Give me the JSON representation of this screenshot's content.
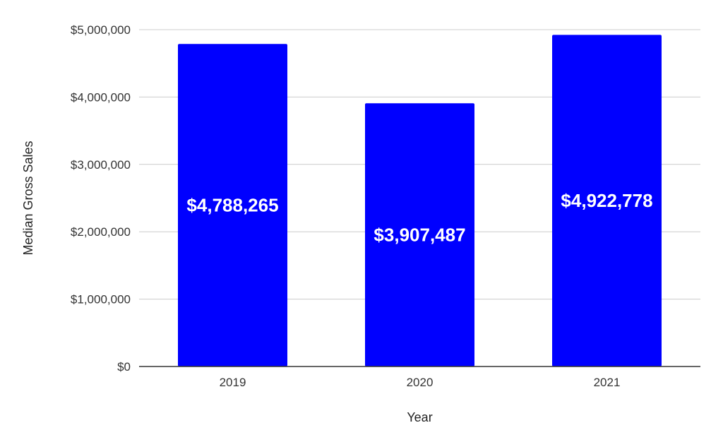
{
  "chart_data": {
    "type": "bar",
    "categories": [
      "2019",
      "2020",
      "2021"
    ],
    "values": [
      4788265,
      3907487,
      4922778
    ],
    "value_labels": [
      "$4,788,265",
      "$3,907,487",
      "$4,922,778"
    ],
    "title": "",
    "xlabel": "Year",
    "ylabel": "Median Gross Sales",
    "ylim": [
      0,
      5000000
    ],
    "yticks": [
      0,
      1000000,
      2000000,
      3000000,
      4000000,
      5000000
    ],
    "ytick_labels": [
      "$0",
      "$1,000,000",
      "$2,000,000",
      "$3,000,000",
      "$4,000,000",
      "$5,000,000"
    ],
    "grid": true,
    "legend": "none",
    "bar_color": "#0000ff",
    "bar_label_color": "#ffffff",
    "grid_color": "#cccccc",
    "axis_color": "#333333"
  }
}
